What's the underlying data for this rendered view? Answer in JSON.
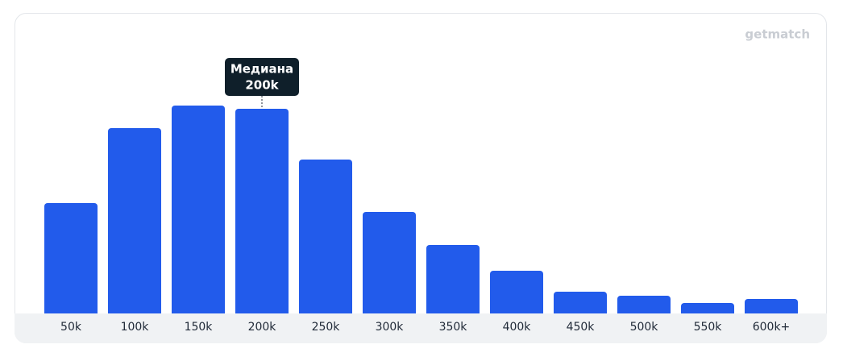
{
  "brand": "getmatch",
  "chart_data": {
    "type": "bar",
    "categories": [
      "50k",
      "100k",
      "150k",
      "200k",
      "250k",
      "300k",
      "350k",
      "400k",
      "450k",
      "500k",
      "550k",
      "600k+"
    ],
    "values": [
      137,
      230,
      258,
      254,
      191,
      126,
      85,
      53,
      27,
      22,
      13,
      18
    ],
    "color": "#225beb",
    "ylim": [
      0,
      258
    ],
    "annotation": {
      "title": "Медиана",
      "label": "200k"
    }
  }
}
